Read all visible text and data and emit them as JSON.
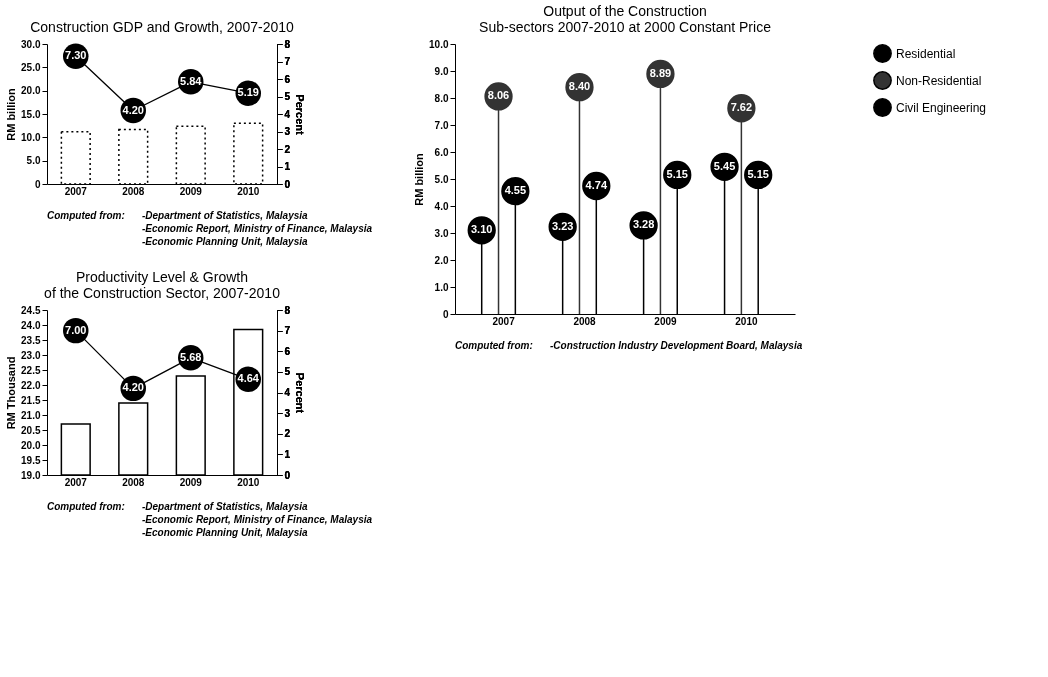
{
  "chart_data": [
    {
      "type": "bar",
      "title": "Construction GDP and Growth, 2007-2010",
      "categories": [
        "2007",
        "2008",
        "2009",
        "2010"
      ],
      "ylabel": "RM billion",
      "y2label": "Percent",
      "ylim": [
        0,
        30
      ],
      "yticks": [
        0,
        {
          "value": 5,
          "label": "5.0"
        },
        {
          "value": 10,
          "label": "10.0"
        },
        {
          "value": 15,
          "label": "15.0"
        },
        {
          "value": 20,
          "label": "20.0"
        },
        {
          "value": 25,
          "label": "25.0"
        },
        {
          "value": 30,
          "label": "30.0"
        }
      ],
      "y2lim": [
        0,
        8
      ],
      "y2ticks": [
        0,
        1,
        2,
        3,
        4,
        5,
        6,
        7,
        8
      ],
      "series": [
        {
          "type": "bar",
          "color": "#ffffff",
          "line_style": "dotted",
          "values": [
            11.2,
            11.7,
            12.4,
            13.0
          ]
        },
        {
          "type": "line",
          "axis": "y2",
          "color": "#000000",
          "marker": "circle",
          "line_style": "solid",
          "values": [
            7.3,
            4.2,
            5.84,
            5.19
          ],
          "value_labels": [
            "7.30",
            "4.20",
            "5.84",
            "5.19"
          ]
        }
      ],
      "annotations": [
        "Computed from:",
        "-Department of Statistics, Malaysia",
        "-Economic Report, Ministry of Finance, Malaysia",
        "-Economic Planning Unit, Malaysia"
      ]
    },
    {
      "type": "bar",
      "title": "Productivity Level & Growth\nof the Construction Sector, 2007-2010",
      "categories": [
        "2007",
        "2008",
        "2009",
        "2010"
      ],
      "ylabel": "RM Thousand",
      "y2label": "Percent",
      "ylim": [
        19,
        24.5
      ],
      "yticks": [
        {
          "value": 19,
          "label": "19.0"
        },
        19.5,
        {
          "value": 20,
          "label": "20.0"
        },
        20.5,
        {
          "value": 21,
          "label": "21.0"
        },
        21.5,
        {
          "value": 22,
          "label": "22.0"
        },
        22.5,
        {
          "value": 23,
          "label": "23.0"
        },
        23.5,
        {
          "value": 24,
          "label": "24.0"
        },
        24.5
      ],
      "y2lim": [
        0,
        8
      ],
      "y2ticks": [
        0,
        1,
        2,
        3,
        4,
        5,
        6,
        7,
        8
      ],
      "series": [
        {
          "type": "bar",
          "color": "#ffffff",
          "line_style": "solid",
          "values": [
            20.7,
            21.4,
            22.3,
            23.85
          ]
        },
        {
          "type": "line",
          "axis": "y2",
          "color": "#000000",
          "marker": "circle",
          "line_style": "solid",
          "values": [
            7.0,
            4.2,
            5.68,
            4.64
          ],
          "value_labels": [
            "7.00",
            "4.20",
            "5.68",
            "4.64"
          ]
        }
      ],
      "annotations": [
        "Computed from:",
        "-Department of Statistics, Malaysia",
        "-Economic Report, Ministry of Finance, Malaysia",
        "-Economic Planning Unit, Malaysia"
      ]
    },
    {
      "type": "lollipop",
      "title": "Output of the Construction\nSub-sectors 2007-2010 at 2000 Constant Price",
      "categories": [
        "2007",
        "2008",
        "2009",
        "2010"
      ],
      "ylabel": "RM billion",
      "ylim": [
        0,
        10
      ],
      "yticks": [
        0,
        {
          "value": 1,
          "label": "1.0"
        },
        {
          "value": 2,
          "label": "2.0"
        },
        {
          "value": 3,
          "label": "3.0"
        },
        {
          "value": 4,
          "label": "4.0"
        },
        {
          "value": 5,
          "label": "5.0"
        },
        {
          "value": 6,
          "label": "6.0"
        },
        {
          "value": 7,
          "label": "7.0"
        },
        {
          "value": 8,
          "label": "8.0"
        },
        {
          "value": 9,
          "label": "9.0"
        },
        {
          "value": 10,
          "label": "10.0"
        }
      ],
      "legend": "right",
      "grid": false,
      "series": [
        {
          "name": "Residential",
          "color": "#000000",
          "values": [
            3.1,
            3.23,
            3.28,
            5.45
          ],
          "value_labels": [
            "3.10",
            "3.23",
            "3.28",
            "5.45"
          ]
        },
        {
          "name": "Non-Residential",
          "color": "#333333",
          "values": [
            8.06,
            8.4,
            8.89,
            7.62
          ],
          "value_labels": [
            "8.06",
            "8.40",
            "8.89",
            "7.62"
          ]
        },
        {
          "name": "Civil Engineering",
          "color": "#000000",
          "values": [
            4.55,
            4.74,
            5.15,
            5.15
          ],
          "value_labels": [
            "4.55",
            "4.74",
            "5.15",
            "5.15"
          ]
        }
      ],
      "annotations": [
        "Computed from:",
        "-Construction Industry Development Board, Malaysia"
      ]
    }
  ]
}
